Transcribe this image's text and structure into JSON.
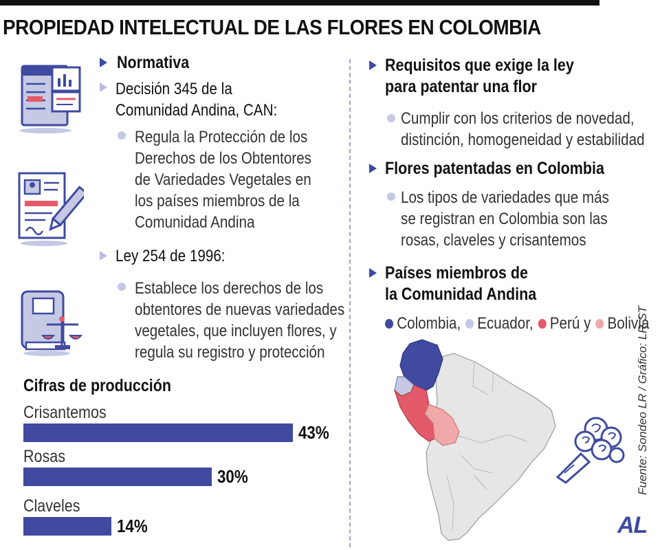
{
  "title": "PROPIEDAD INTELECTUAL DE LAS FLORES EN COLOMBIA",
  "left": {
    "normativa": "Normativa",
    "decision_line1": "Decisión 345 de la",
    "decision_line2": "Comunidad  Andina, CAN:",
    "decision_desc": [
      "Regula la Protección de los",
      "Derechos de los Obtentores",
      "de Variedades Vegetales en",
      "los países miembros de la",
      "Comunidad Andina"
    ],
    "ley": "Ley 254 de 1996:",
    "ley_desc": [
      "Establece los derechos de los",
      "obtentores de nuevas variedades",
      "vegetales, que incluyen flores, y",
      "regula su registro y protección"
    ]
  },
  "right": {
    "req_line1": "Requisitos que exige la ley",
    "req_line2": "para patentar una flor",
    "req_desc": [
      "Cumplir con los criterios de novedad,",
      "distinción, homogeneidad y estabilidad"
    ],
    "flores": "Flores patentadas en Colombia",
    "flores_desc": [
      "Los tipos de variedades que más",
      "se registran en Colombia son las",
      "rosas, claveles y crisantemos"
    ],
    "paises_line1": "Países miembros de",
    "paises_line2": "la Comunidad Andina",
    "legend": [
      "Colombia,",
      "Ecuador,",
      "Perú y",
      "Bolivia"
    ]
  },
  "colors": {
    "accent": "#3f4aa0",
    "colombia": "#3f4aa0",
    "ecuador": "#c5c9e4",
    "peru": "#e35a6a",
    "bolivia": "#f0a8a8",
    "land": "#e6e6e6"
  },
  "chart_data": {
    "type": "bar",
    "title": "Cifras de producción",
    "categories": [
      "Crisantemos",
      "Rosas",
      "Claveles"
    ],
    "values": [
      43,
      30,
      14
    ],
    "value_labels": [
      "43%",
      "30%",
      "14%"
    ]
  },
  "source": "Fuente: Sondeo LR / Gráfico: LR-ST",
  "logo": "AL"
}
